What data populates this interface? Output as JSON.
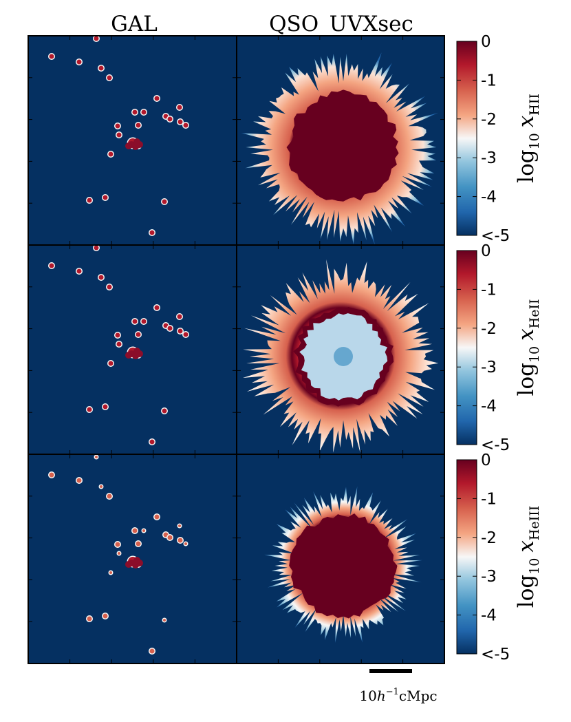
{
  "chart_data": {
    "type": "heatmap",
    "columns": [
      "GAL",
      "QSO_UVXsec"
    ],
    "rows": [
      {
        "quantity": "HII",
        "colorbar_label": {
          "prefix": "log",
          "base": "10",
          "var": "x",
          "sub": "HII"
        }
      },
      {
        "quantity": "HeII",
        "colorbar_label": {
          "prefix": "log",
          "base": "10",
          "var": "x",
          "sub": "HeII"
        }
      },
      {
        "quantity": "HeIII",
        "colorbar_label": {
          "prefix": "log",
          "base": "10",
          "var": "x",
          "sub": "HeIII"
        }
      }
    ],
    "colorbar": {
      "range": [
        -5,
        0
      ],
      "ticks": [
        "0",
        "-1",
        "-2",
        "-3",
        "-4",
        "<-5"
      ],
      "colormap": [
        "#053061",
        "#2166ac",
        "#4393c3",
        "#92c5de",
        "#f7f7f7",
        "#f4a582",
        "#d6604d",
        "#b2182b",
        "#67001f"
      ]
    },
    "background_color": "#053061",
    "scale_bar": {
      "length_label": "10",
      "unit": "h",
      "exponent": "−1",
      "suffix": "cMpc"
    },
    "grid": false
  }
}
